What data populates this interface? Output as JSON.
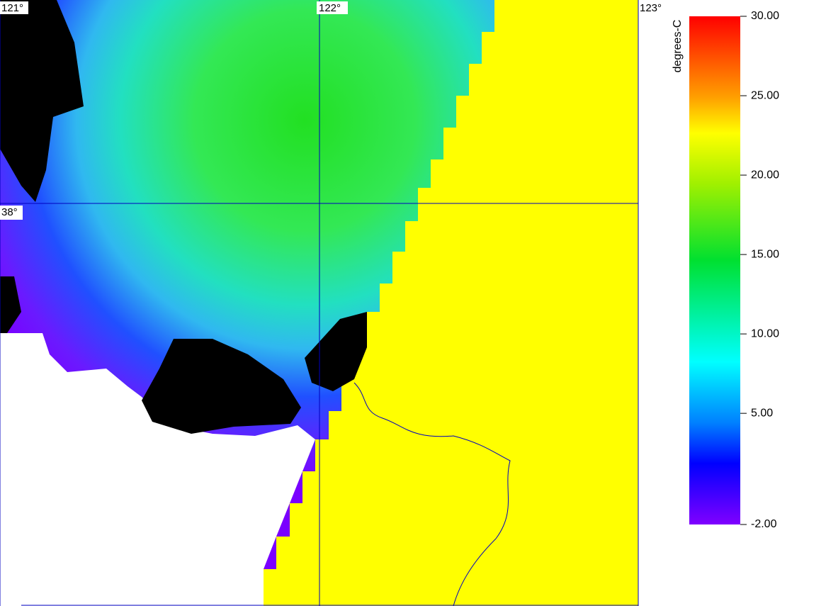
{
  "map": {
    "graticule": {
      "lon_labels": [
        "121°",
        "122°",
        "123°"
      ],
      "lat_labels": [
        "38°"
      ]
    },
    "colorbar": {
      "unit": "degrees-C",
      "lim": [
        -2,
        30
      ],
      "ticks": [
        {
          "value": 30,
          "label": "30.00"
        },
        {
          "value": 25,
          "label": "25.00"
        },
        {
          "value": 20,
          "label": "20.00"
        },
        {
          "value": 15,
          "label": "15.00"
        },
        {
          "value": 10,
          "label": "10.00"
        },
        {
          "value": 5,
          "label": "5.00"
        },
        {
          "value": -2,
          "label": "-2.00"
        }
      ]
    }
  }
}
